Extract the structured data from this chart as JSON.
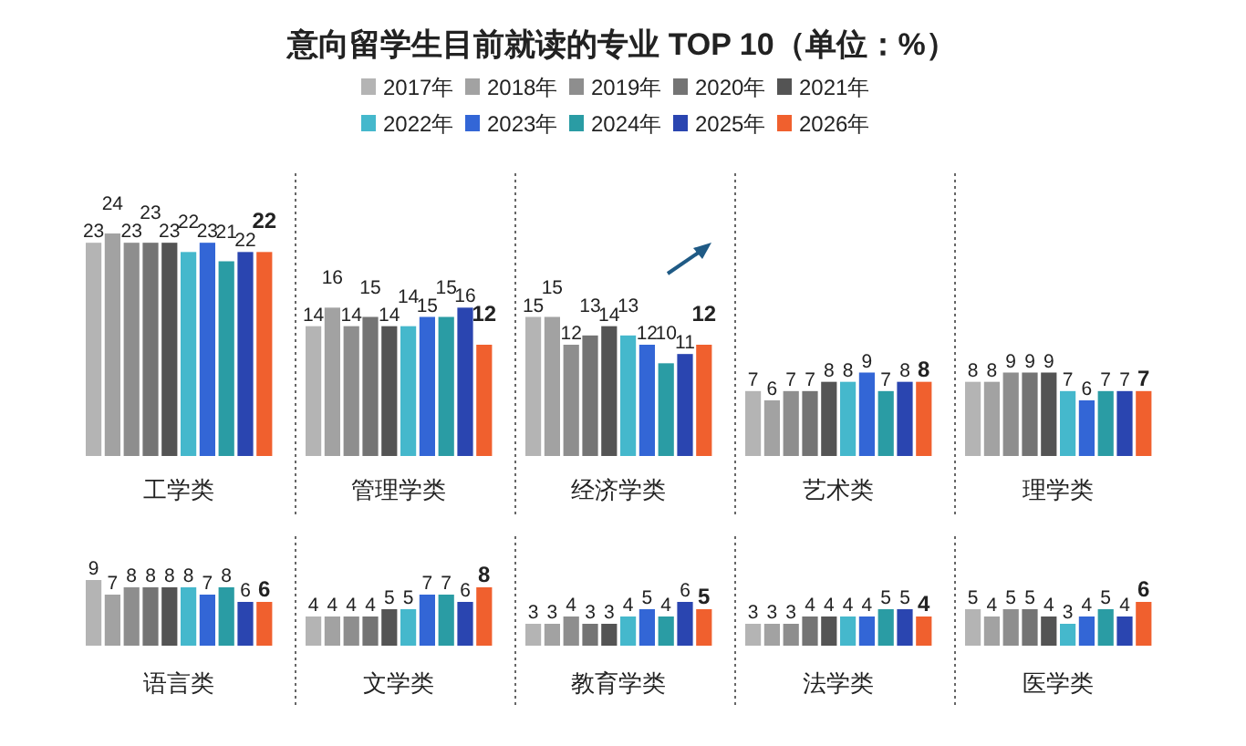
{
  "chart_data": [
    {
      "type": "bar",
      "title": "意向留学生目前就读的专业 TOP 10（单位：%）",
      "legend": "top",
      "data_labels": true,
      "categories": [
        "工学类",
        "管理学类",
        "经济学类",
        "艺术类",
        "理学类"
      ],
      "series": [
        {
          "name": "2017年",
          "color": "#b4b4b4",
          "values": [
            23,
            14,
            15,
            7,
            8
          ]
        },
        {
          "name": "2018年",
          "color": "#a2a2a2",
          "values": [
            24,
            16,
            15,
            6,
            8
          ]
        },
        {
          "name": "2019年",
          "color": "#8e8e8e",
          "values": [
            23,
            14,
            12,
            7,
            9
          ]
        },
        {
          "name": "2020年",
          "color": "#747474",
          "values": [
            23,
            15,
            13,
            7,
            9
          ]
        },
        {
          "name": "2021年",
          "color": "#545454",
          "values": [
            23,
            14,
            14,
            8,
            9
          ]
        },
        {
          "name": "2022年",
          "color": "#45b8cc",
          "values": [
            22,
            14,
            13,
            8,
            7
          ]
        },
        {
          "name": "2023年",
          "color": "#3366d6",
          "values": [
            23,
            15,
            12,
            9,
            6
          ]
        },
        {
          "name": "2024年",
          "color": "#2a9ca4",
          "values": [
            21,
            15,
            10,
            7,
            7
          ]
        },
        {
          "name": "2025年",
          "color": "#2a45b0",
          "values": [
            22,
            16,
            11,
            8,
            7
          ]
        },
        {
          "name": "2026年",
          "color": "#f0602e",
          "values": [
            22,
            12,
            12,
            8,
            7
          ]
        }
      ]
    },
    {
      "type": "bar",
      "data_labels": true,
      "categories": [
        "语言类",
        "文学类",
        "教育学类",
        "法学类",
        "医学类"
      ],
      "series": [
        {
          "color": "#b4b4b4",
          "values": [
            9,
            4,
            3,
            3,
            5
          ]
        },
        {
          "color": "#a2a2a2",
          "values": [
            7,
            4,
            3,
            3,
            4
          ]
        },
        {
          "color": "#8e8e8e",
          "values": [
            8,
            4,
            4,
            3,
            5
          ]
        },
        {
          "color": "#747474",
          "values": [
            8,
            4,
            3,
            4,
            5
          ]
        },
        {
          "color": "#545454",
          "values": [
            8,
            5,
            3,
            4,
            4
          ]
        },
        {
          "color": "#45b8cc",
          "values": [
            8,
            5,
            4,
            4,
            3
          ]
        },
        {
          "color": "#3366d6",
          "values": [
            7,
            7,
            5,
            4,
            4
          ]
        },
        {
          "color": "#2a9ca4",
          "values": [
            8,
            7,
            4,
            5,
            5
          ]
        },
        {
          "color": "#2a45b0",
          "values": [
            6,
            6,
            6,
            5,
            4
          ]
        },
        {
          "color": "#f0602e",
          "values": [
            6,
            8,
            5,
            4,
            6
          ]
        }
      ]
    }
  ]
}
